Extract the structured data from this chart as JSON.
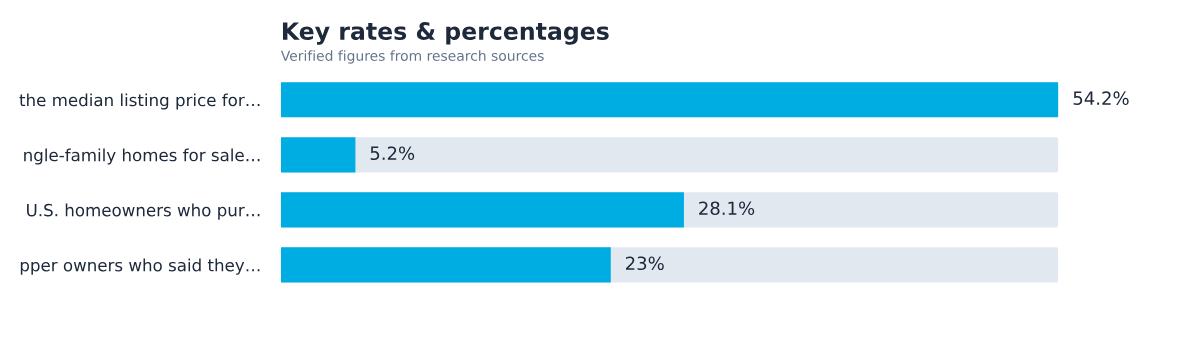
{
  "chart_data": {
    "type": "bar",
    "orientation": "horizontal",
    "title": "Key rates & percentages",
    "subtitle": "Verified figures from research sources",
    "categories": [
      "the median listing price for…",
      "ngle-family homes for sale…",
      "U.S. homeowners who pur…",
      "pper owners who said they…"
    ],
    "values": [
      54.2,
      5.2,
      28.1,
      23
    ],
    "value_labels": [
      "54.2%",
      "5.2%",
      "28.1%",
      "23%"
    ],
    "color": "#00ade3",
    "xlim": [
      0,
      54.2
    ],
    "tick_labels": "y",
    "grid": false,
    "legend": false
  }
}
